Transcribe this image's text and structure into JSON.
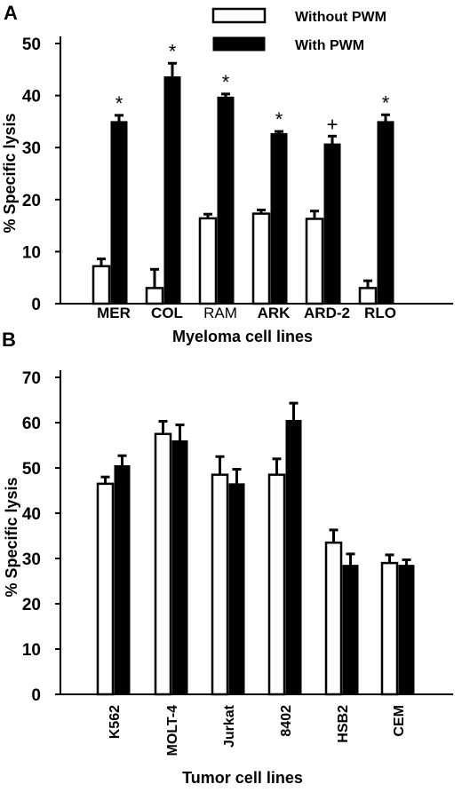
{
  "chart_data": [
    {
      "panel_label": "A",
      "type": "bar",
      "xlabel": "Myeloma cell lines",
      "ylabel": "% Specific lysis",
      "ylim": [
        0,
        50
      ],
      "yticks": [
        0,
        10,
        20,
        30,
        40,
        50
      ],
      "categories": [
        "MER",
        "COL",
        "RAM",
        "ARK",
        "ARD-2",
        "RLO"
      ],
      "category_bold": [
        true,
        true,
        false,
        true,
        true,
        true
      ],
      "series": [
        {
          "name": "Without PWM",
          "color": "#ffffff",
          "values": [
            7.2,
            3.0,
            16.4,
            17.3,
            16.3,
            3.0
          ],
          "errors": [
            1.4,
            3.6,
            0.8,
            0.7,
            1.5,
            1.4
          ]
        },
        {
          "name": "With PWM",
          "color": "#000000",
          "values": [
            35.0,
            43.6,
            39.7,
            32.7,
            30.7,
            35.0
          ],
          "errors": [
            1.2,
            2.6,
            0.6,
            0.4,
            1.5,
            1.3
          ]
        }
      ],
      "annotations": [
        "*",
        "*",
        "*",
        "*",
        "+",
        "*"
      ],
      "legend": "top-right",
      "grid": false
    },
    {
      "panel_label": "B",
      "type": "bar",
      "xlabel": "Tumor cell lines",
      "ylabel": "% Specific lysis",
      "ylim": [
        0,
        70
      ],
      "yticks": [
        0,
        10,
        20,
        30,
        40,
        50,
        60,
        70
      ],
      "categories": [
        "K562",
        "MOLT-4",
        "Jurkat",
        "8402",
        "HSB2",
        "CEM"
      ],
      "series": [
        {
          "name": "Without PWM",
          "color": "#ffffff",
          "values": [
            46.5,
            57.5,
            48.5,
            48.5,
            33.5,
            29.0
          ],
          "errors": [
            1.5,
            2.8,
            4.0,
            3.5,
            2.8,
            1.8
          ]
        },
        {
          "name": "With PWM",
          "color": "#000000",
          "values": [
            50.5,
            56.0,
            46.5,
            60.5,
            28.5,
            28.5
          ],
          "errors": [
            2.2,
            3.5,
            3.2,
            3.8,
            2.5,
            1.2
          ]
        }
      ],
      "grid": false
    }
  ]
}
